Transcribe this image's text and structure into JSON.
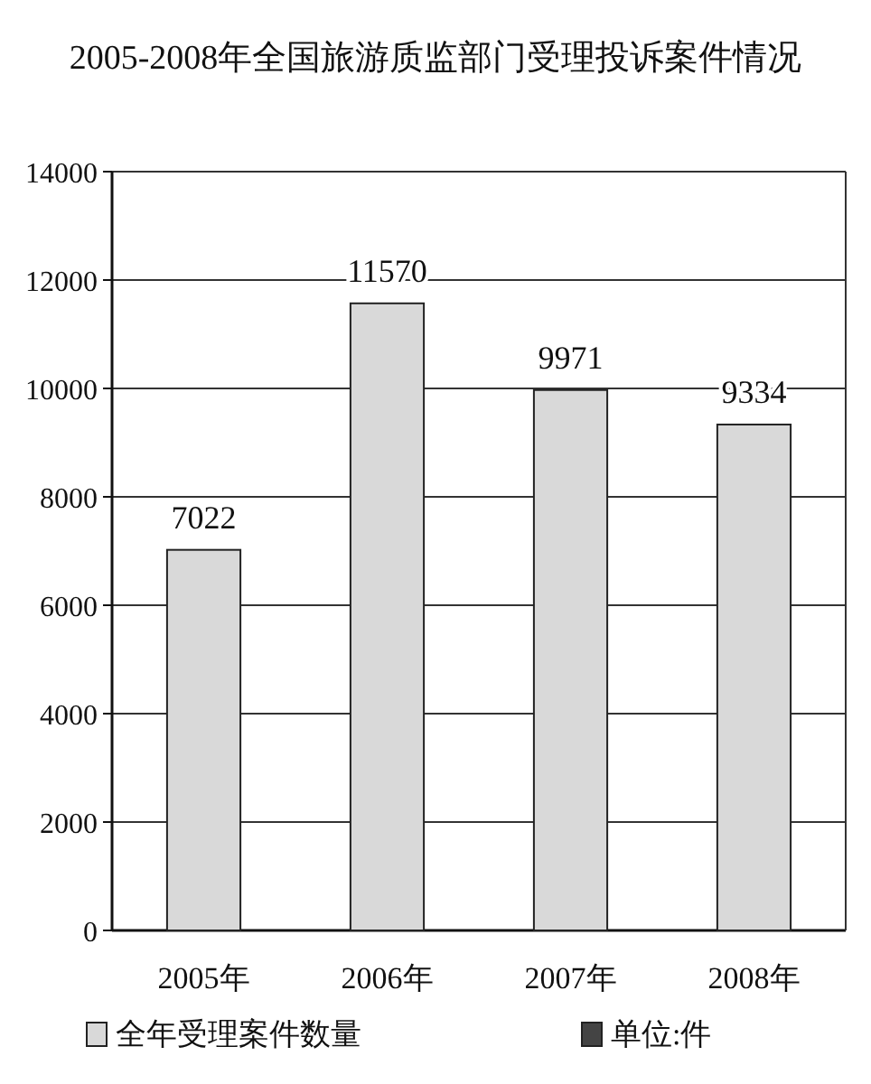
{
  "chart_data": {
    "type": "bar",
    "title": "2005-2008年全国旅游质监部门受理投诉案件情况",
    "categories": [
      "2005年",
      "2006年",
      "2007年",
      "2008年"
    ],
    "series": [
      {
        "name": "全年受理案件数量",
        "color": "#d9d9d9",
        "values": [
          7022,
          11570,
          9971,
          9334
        ]
      }
    ],
    "ylim": [
      0,
      14000
    ],
    "yticks": [
      0,
      2000,
      4000,
      6000,
      8000,
      10000,
      12000,
      14000
    ],
    "grid": "y",
    "legend": "bottom left",
    "data_labels": true,
    "annotations": [
      "单位:件"
    ]
  }
}
